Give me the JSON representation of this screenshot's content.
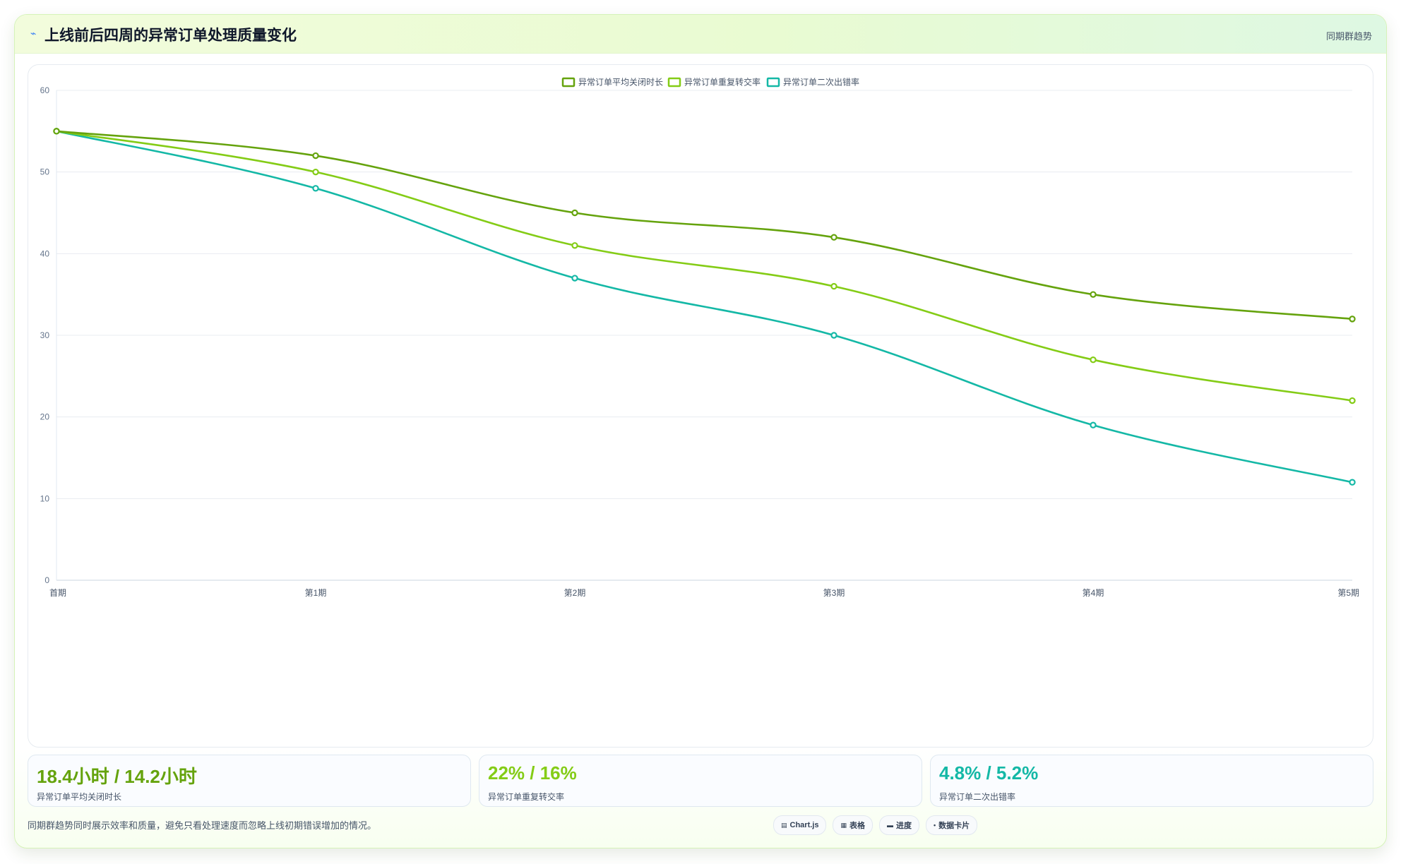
{
  "header": {
    "icon": "trend-icon",
    "title": "上线前后四周的异常订单处理质量变化",
    "tag": "同期群趋势"
  },
  "chart_data": {
    "type": "line",
    "categories": [
      "首期",
      "第1期",
      "第2期",
      "第3期",
      "第4期",
      "第5期"
    ],
    "series": [
      {
        "name": "异常订单平均关闭时长",
        "color": "#65a30d",
        "values": [
          55,
          52,
          45,
          42,
          35,
          32
        ]
      },
      {
        "name": "异常订单重复转交率",
        "color": "#84cc16",
        "values": [
          55,
          50,
          41,
          36,
          27,
          22
        ]
      },
      {
        "name": "异常订单二次出错率",
        "color": "#14b8a6",
        "values": [
          55,
          48,
          37,
          30,
          19,
          12
        ]
      }
    ],
    "ylim": [
      0,
      60
    ],
    "yticks": [
      0,
      10,
      20,
      30,
      40,
      50,
      60
    ],
    "grid": true,
    "legend": "top-center"
  },
  "stats": [
    {
      "value": "18.4小时 / 14.2小时",
      "label": "异常订单平均关闭时长",
      "color": "#65a30d"
    },
    {
      "value": "22% / 16%",
      "label": "异常订单重复转交率",
      "color": "#84cc16"
    },
    {
      "value": "4.8% / 5.2%",
      "label": "异常订单二次出错率",
      "color": "#14b8a6"
    }
  ],
  "footnote": "同期群趋势同时展示效率和质量，避免只看处理速度而忽略上线初期错误增加的情况。",
  "chips": [
    {
      "icon": "chart-icon",
      "glyph": "▤",
      "label": "Chart.js"
    },
    {
      "icon": "table-icon",
      "glyph": "▦",
      "label": "表格"
    },
    {
      "icon": "progress-icon",
      "glyph": "▬",
      "label": "进度"
    },
    {
      "icon": "card-icon",
      "glyph": "•",
      "label": "数据卡片"
    }
  ]
}
